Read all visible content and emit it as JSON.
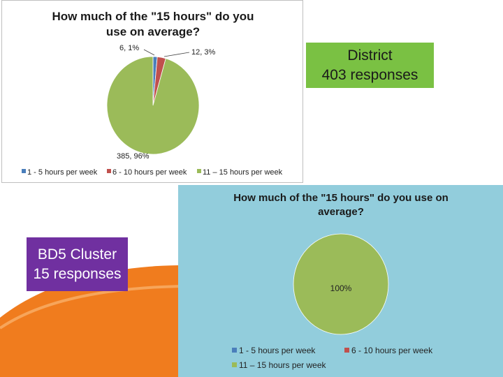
{
  "district_box": {
    "line1": "District",
    "line2": "403 responses"
  },
  "cluster_box": {
    "line1": "BD5  Cluster",
    "line2": "15 responses"
  },
  "colors": {
    "series1": "#4a7ebb",
    "series2": "#c0504d",
    "series3": "#9bbb59",
    "panel2_bg": "#92cddc",
    "district_box": "#7ac143",
    "cluster_box": "#7030a0",
    "swoosh": "#f07c1e"
  },
  "chart_data": [
    {
      "type": "pie",
      "title_lines": [
        "How much of the \"15 hours\" do you",
        "use on average?"
      ],
      "categories": [
        "1 - 5 hours per week",
        "6 - 10 hours per week",
        "11 – 15 hours per week"
      ],
      "values": [
        6,
        12,
        385
      ],
      "percentages": [
        1,
        3,
        96
      ],
      "data_labels": [
        "6, 1%",
        "12, 3%",
        "385, 96%"
      ],
      "legend_position": "bottom"
    },
    {
      "type": "pie",
      "title_lines": [
        "How much of the \"15 hours\" do you use on",
        "average?"
      ],
      "categories": [
        "1 - 5 hours per week",
        "6 - 10 hours per week",
        "11 – 15 hours per week"
      ],
      "values": [
        0,
        0,
        15
      ],
      "percentages": [
        0,
        0,
        100
      ],
      "data_labels": [
        "100%"
      ],
      "legend_position": "bottom"
    }
  ]
}
